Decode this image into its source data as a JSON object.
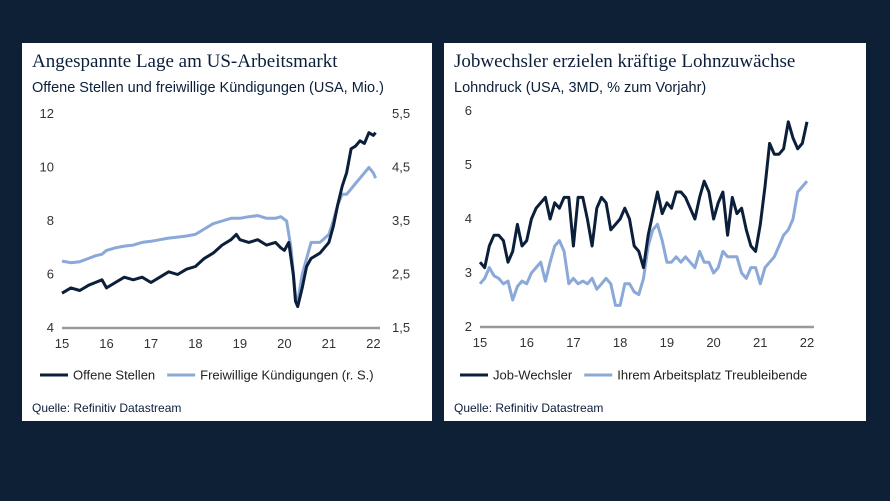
{
  "chart_data": [
    {
      "type": "line",
      "title": "Angespannte Lage am US-Arbeitsmarkt",
      "subtitle": "Offene Stellen und freiwillige Kündigungen (USA, Mio.)",
      "source": "Quelle: Refinitiv Datastream",
      "xlim": [
        2015,
        2022.15
      ],
      "x_ticks": [
        "15",
        "16",
        "17",
        "18",
        "19",
        "20",
        "21",
        "22"
      ],
      "ylim_left": [
        4,
        12
      ],
      "y_ticks_left": [
        "4",
        "6",
        "8",
        "10",
        "12"
      ],
      "ylim_right": [
        1.5,
        5.5
      ],
      "y_ticks_right": [
        "1,5",
        "2,5",
        "3,5",
        "4,5",
        "5,5"
      ],
      "series": [
        {
          "name": "Offene Stellen",
          "color": "#0b1f3a",
          "axis": "left",
          "x": [
            2015.0,
            2015.2,
            2015.4,
            2015.6,
            2015.75,
            2015.9,
            2016.0,
            2016.2,
            2016.4,
            2016.6,
            2016.8,
            2017.0,
            2017.2,
            2017.4,
            2017.6,
            2017.8,
            2018.0,
            2018.2,
            2018.4,
            2018.6,
            2018.8,
            2018.92,
            2019.0,
            2019.2,
            2019.4,
            2019.6,
            2019.8,
            2019.92,
            2020.0,
            2020.1,
            2020.2,
            2020.25,
            2020.3,
            2020.4,
            2020.5,
            2020.6,
            2020.8,
            2021.0,
            2021.1,
            2021.2,
            2021.3,
            2021.4,
            2021.5,
            2021.6,
            2021.7,
            2021.8,
            2021.9,
            2022.0,
            2022.05
          ],
          "values": [
            5.3,
            5.5,
            5.4,
            5.6,
            5.7,
            5.8,
            5.5,
            5.7,
            5.9,
            5.8,
            5.9,
            5.7,
            5.9,
            6.1,
            6.0,
            6.2,
            6.3,
            6.6,
            6.8,
            7.1,
            7.3,
            7.5,
            7.3,
            7.2,
            7.3,
            7.1,
            7.2,
            7.0,
            6.9,
            7.2,
            6.0,
            5.0,
            4.8,
            5.5,
            6.3,
            6.6,
            6.8,
            7.2,
            7.8,
            8.6,
            9.3,
            9.8,
            10.7,
            10.8,
            11.0,
            10.9,
            11.3,
            11.2,
            11.3
          ]
        },
        {
          "name": "Freiwillige Kündigungen (r. S.)",
          "color": "#8aa8d8",
          "axis": "right",
          "x": [
            2015.0,
            2015.2,
            2015.4,
            2015.6,
            2015.75,
            2015.9,
            2016.0,
            2016.2,
            2016.4,
            2016.6,
            2016.8,
            2017.0,
            2017.2,
            2017.4,
            2017.6,
            2017.8,
            2018.0,
            2018.2,
            2018.4,
            2018.6,
            2018.8,
            2019.0,
            2019.2,
            2019.4,
            2019.6,
            2019.8,
            2019.92,
            2020.05,
            2020.15,
            2020.25,
            2020.3,
            2020.4,
            2020.5,
            2020.6,
            2020.8,
            2021.0,
            2021.1,
            2021.2,
            2021.3,
            2021.4,
            2021.5,
            2021.6,
            2021.7,
            2021.8,
            2021.9,
            2022.0,
            2022.05
          ],
          "values": [
            2.75,
            2.72,
            2.74,
            2.8,
            2.85,
            2.88,
            2.95,
            3.0,
            3.03,
            3.05,
            3.1,
            3.12,
            3.15,
            3.18,
            3.2,
            3.22,
            3.25,
            3.35,
            3.45,
            3.5,
            3.55,
            3.55,
            3.58,
            3.6,
            3.55,
            3.55,
            3.58,
            3.5,
            3.0,
            2.1,
            2.0,
            2.5,
            2.8,
            3.1,
            3.1,
            3.25,
            3.5,
            3.8,
            4.0,
            4.0,
            4.1,
            4.2,
            4.3,
            4.4,
            4.5,
            4.4,
            4.3
          ]
        }
      ]
    },
    {
      "type": "line",
      "title": "Jobwechsler erzielen kräftige Lohnzuwächse",
      "subtitle": "Lohndruck (USA, 3MD, % zum Vorjahr)",
      "source": "Quelle: Refinitiv Datastream",
      "xlim": [
        2015,
        2022.15
      ],
      "x_ticks": [
        "15",
        "16",
        "17",
        "18",
        "19",
        "20",
        "21",
        "22"
      ],
      "ylim": [
        2,
        6
      ],
      "y_ticks": [
        "2",
        "3",
        "4",
        "5",
        "6"
      ],
      "series": [
        {
          "name": "Job-Wechsler",
          "color": "#0b1f3a",
          "x": [
            2015.0,
            2015.1,
            2015.2,
            2015.3,
            2015.4,
            2015.5,
            2015.6,
            2015.7,
            2015.8,
            2015.9,
            2016.0,
            2016.1,
            2016.2,
            2016.3,
            2016.4,
            2016.5,
            2016.6,
            2016.7,
            2016.8,
            2016.9,
            2017.0,
            2017.1,
            2017.2,
            2017.3,
            2017.4,
            2017.5,
            2017.6,
            2017.7,
            2017.8,
            2017.9,
            2018.0,
            2018.1,
            2018.2,
            2018.3,
            2018.4,
            2018.5,
            2018.6,
            2018.7,
            2018.8,
            2018.9,
            2019.0,
            2019.1,
            2019.2,
            2019.3,
            2019.4,
            2019.5,
            2019.6,
            2019.7,
            2019.8,
            2019.9,
            2020.0,
            2020.1,
            2020.2,
            2020.3,
            2020.4,
            2020.5,
            2020.6,
            2020.7,
            2020.8,
            2020.9,
            2021.0,
            2021.1,
            2021.2,
            2021.3,
            2021.4,
            2021.5,
            2021.6,
            2021.7,
            2021.8,
            2021.9,
            2022.0
          ],
          "values": [
            3.2,
            3.1,
            3.5,
            3.7,
            3.7,
            3.6,
            3.2,
            3.4,
            3.9,
            3.5,
            3.6,
            4.0,
            4.2,
            4.3,
            4.4,
            4.0,
            4.3,
            4.2,
            4.4,
            4.4,
            3.5,
            4.4,
            4.4,
            4.0,
            3.5,
            4.2,
            4.4,
            4.3,
            3.8,
            3.9,
            4.0,
            4.2,
            4.0,
            3.5,
            3.4,
            3.1,
            3.7,
            4.1,
            4.5,
            4.1,
            4.3,
            4.2,
            4.5,
            4.5,
            4.4,
            4.2,
            4.0,
            4.4,
            4.7,
            4.5,
            4.0,
            4.3,
            4.5,
            3.7,
            4.4,
            4.1,
            4.2,
            3.8,
            3.5,
            3.4,
            3.9,
            4.6,
            5.4,
            5.2,
            5.2,
            5.3,
            5.8,
            5.5,
            5.3,
            5.4,
            5.8
          ]
        },
        {
          "name": "Ihrem Arbeitsplatz Treubleibende",
          "color": "#8aa8d8",
          "x": [
            2015.0,
            2015.1,
            2015.2,
            2015.3,
            2015.4,
            2015.5,
            2015.6,
            2015.7,
            2015.8,
            2015.9,
            2016.0,
            2016.1,
            2016.2,
            2016.3,
            2016.4,
            2016.5,
            2016.6,
            2016.7,
            2016.8,
            2016.9,
            2017.0,
            2017.1,
            2017.2,
            2017.3,
            2017.4,
            2017.5,
            2017.6,
            2017.7,
            2017.8,
            2017.9,
            2018.0,
            2018.1,
            2018.2,
            2018.3,
            2018.4,
            2018.5,
            2018.6,
            2018.7,
            2018.8,
            2018.9,
            2019.0,
            2019.1,
            2019.2,
            2019.3,
            2019.4,
            2019.5,
            2019.6,
            2019.7,
            2019.8,
            2019.9,
            2020.0,
            2020.1,
            2020.2,
            2020.3,
            2020.4,
            2020.5,
            2020.6,
            2020.7,
            2020.8,
            2020.9,
            2021.0,
            2021.1,
            2021.2,
            2021.3,
            2021.4,
            2021.5,
            2021.6,
            2021.7,
            2021.8,
            2021.9,
            2022.0
          ],
          "values": [
            2.8,
            2.9,
            3.1,
            2.95,
            2.9,
            2.8,
            2.85,
            2.5,
            2.75,
            2.85,
            2.8,
            3.0,
            3.1,
            3.2,
            2.85,
            3.2,
            3.5,
            3.6,
            3.4,
            2.8,
            2.9,
            2.8,
            2.85,
            2.8,
            2.9,
            2.7,
            2.8,
            2.9,
            2.8,
            2.4,
            2.4,
            2.8,
            2.8,
            2.65,
            2.6,
            2.9,
            3.5,
            3.8,
            3.9,
            3.6,
            3.2,
            3.2,
            3.3,
            3.2,
            3.3,
            3.2,
            3.1,
            3.4,
            3.2,
            3.2,
            3.0,
            3.1,
            3.4,
            3.3,
            3.3,
            3.3,
            3.0,
            2.9,
            3.1,
            3.1,
            2.8,
            3.1,
            3.2,
            3.3,
            3.5,
            3.7,
            3.8,
            4.0,
            4.5,
            4.6,
            4.7
          ]
        }
      ]
    }
  ]
}
